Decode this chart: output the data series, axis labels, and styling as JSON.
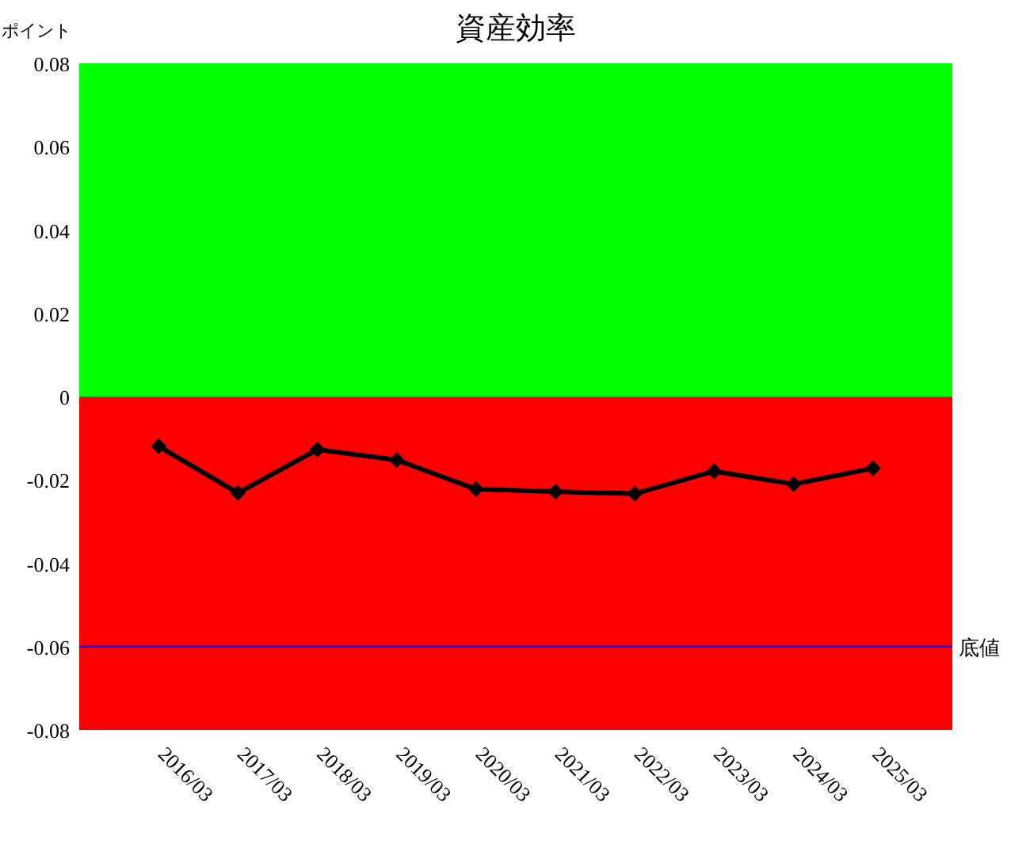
{
  "chart_data": {
    "type": "line",
    "title": "資産効率",
    "ylabel": "ポイント",
    "categories": [
      "2016/03",
      "2017/03",
      "2018/03",
      "2019/03",
      "2020/03",
      "2021/03",
      "2022/03",
      "2023/03",
      "2024/03",
      "2025/03"
    ],
    "series": [
      {
        "color": "#000000",
        "values": [
          -0.0119,
          -0.0231,
          -0.0127,
          -0.0152,
          -0.0222,
          -0.0228,
          -0.0233,
          -0.0179,
          -0.021,
          -0.0172
        ]
      }
    ],
    "ylim": [
      -0.08,
      0.08
    ],
    "yticks": [
      -0.08,
      -0.06,
      -0.04,
      -0.02,
      0,
      0.02,
      0.04,
      0.06,
      0.08
    ],
    "bands": [
      {
        "axis": "y",
        "from": 0,
        "to": 0.08,
        "color": "#00ff00"
      },
      {
        "axis": "y",
        "from": -0.08,
        "to": 0,
        "color": "#ff0000"
      }
    ],
    "ref_lines": [
      {
        "axis": "y",
        "value": -0.06,
        "label": "底値",
        "color": "#0000ff",
        "line_style": "solid"
      }
    ],
    "marker": "diamond",
    "line_style": "solid",
    "grid": false
  }
}
